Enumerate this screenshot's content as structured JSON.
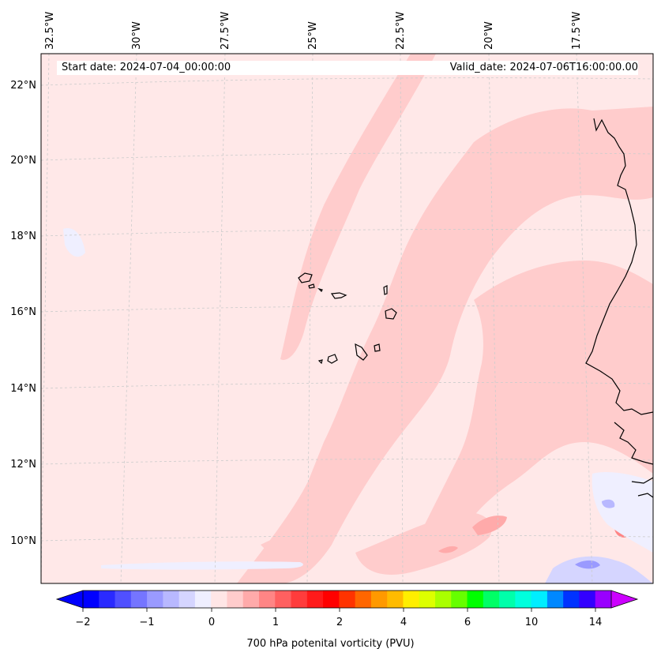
{
  "header": {
    "start_date": "Start date: 2024-07-04_00:00:00",
    "valid_date": "Valid_date: 2024-07-06T16:00:00.00"
  },
  "map": {
    "lon_labels": [
      "32.5°W",
      "30°W",
      "27.5°W",
      "25°W",
      "22.5°W",
      "20°W",
      "17.5°W"
    ],
    "lat_labels": [
      "22°N",
      "20°N",
      "18°N",
      "16°N",
      "14°N",
      "12°N",
      "10°N"
    ],
    "background_color": "#ffe8e8",
    "contour_color": "#ffcccc",
    "coastline_color": "#000000"
  },
  "colorbar": {
    "label": "700 hPa potenital vorticity (PVU)",
    "tick_labels": [
      "−2",
      "−1",
      "0",
      "1",
      "2",
      "4",
      "6",
      "10",
      "14"
    ],
    "colors": [
      "#0000ff",
      "#2a2aff",
      "#5050ff",
      "#7575ff",
      "#9a9aff",
      "#b8b8ff",
      "#d5d5ff",
      "#efefff",
      "#ffe6e6",
      "#ffcccc",
      "#ffaaaa",
      "#ff8585",
      "#ff6060",
      "#ff3c3c",
      "#ff1a1a",
      "#ff0000",
      "#ff3300",
      "#ff6600",
      "#ff9900",
      "#ffbb00",
      "#ffee00",
      "#ddff00",
      "#aaff00",
      "#66ff00",
      "#00ff00",
      "#00ff66",
      "#00ffaa",
      "#00ffdd",
      "#00eeff",
      "#0088ff",
      "#0033ff",
      "#3300ff",
      "#9900ff"
    ],
    "extend_min_color": "#0000ff",
    "extend_max_color": "#cc00ff"
  }
}
